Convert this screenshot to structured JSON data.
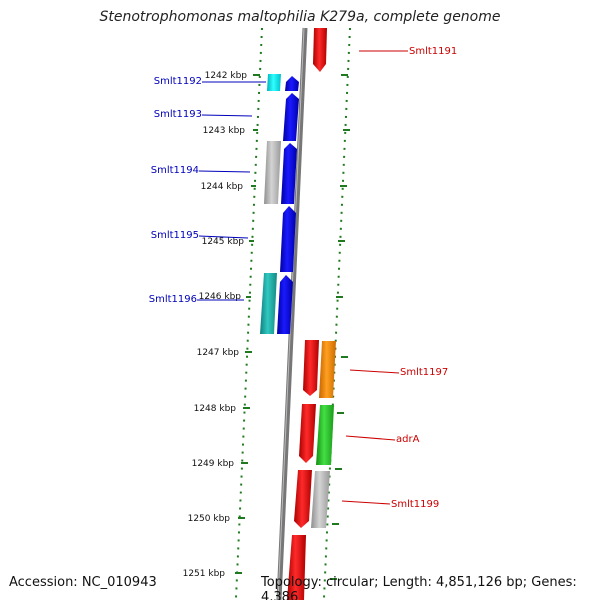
{
  "title": "Stenotrophomonas maltophilia K279a, complete genome",
  "footer": {
    "accession": "Accession: NC_010943",
    "topology": "Topology: circular; Length: 4,851,126 bp; Genes: 4,386"
  },
  "colors": {
    "left_strand_label": "#0000bb",
    "right_strand_label": "#cc0000",
    "tick": "#1f7a1f",
    "backbone": "#777777"
  },
  "scale": {
    "unit": "kbp",
    "ticks": [
      "1242 kbp",
      "1243 kbp",
      "1244 kbp",
      "1245 kbp",
      "1246 kbp",
      "1247 kbp",
      "1248 kbp",
      "1249 kbp",
      "1250 kbp",
      "1251 kbp"
    ]
  },
  "genes": [
    {
      "label": "Smlt1191",
      "strand": "right",
      "color": "#ff0000"
    },
    {
      "label": "Smlt1192",
      "strand": "left",
      "color": "#0000ff"
    },
    {
      "label": "Smlt1193",
      "strand": "left",
      "color": "#0000ff"
    },
    {
      "label": "Smlt1194",
      "strand": "left",
      "color": "#0000ff"
    },
    {
      "label": "Smlt1195",
      "strand": "left",
      "color": "#0000ff"
    },
    {
      "label": "Smlt1196",
      "strand": "left",
      "color": "#0000ff"
    },
    {
      "label": "Smlt1197",
      "strand": "right",
      "color": "#ff0000"
    },
    {
      "label": "adrA",
      "strand": "right",
      "color": "#ff0000"
    },
    {
      "label": "Smlt1199",
      "strand": "right",
      "color": "#ff0000"
    }
  ],
  "features": [
    {
      "kind": "cyan-feature",
      "color": "#00e5ee"
    },
    {
      "kind": "grey-feature",
      "color": "#b8b8b8"
    },
    {
      "kind": "teal-feature",
      "color": "#20b2aa"
    },
    {
      "kind": "orange-feature",
      "color": "#ff8c00"
    },
    {
      "kind": "green-feature",
      "color": "#22cc22"
    },
    {
      "kind": "grey-feature",
      "color": "#b8b8b8"
    }
  ]
}
